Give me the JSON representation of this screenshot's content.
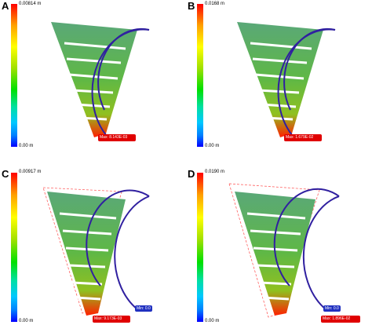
{
  "colormap": [
    "#0000ff",
    "#0080ff",
    "#00c8ff",
    "#00e0a0",
    "#00e000",
    "#a0e000",
    "#ffff00",
    "#ffa000",
    "#ff0000"
  ],
  "panels": [
    {
      "letter": "A",
      "scale_max": "0.00814 m",
      "scale_min": "0.00 m",
      "max_label": "Max: 8.143E-03",
      "min_label": "",
      "deformed_outline": false
    },
    {
      "letter": "B",
      "scale_max": "0.0168 m",
      "scale_min": "0.00 m",
      "max_label": "Max: 1.679E-02",
      "min_label": "",
      "deformed_outline": false
    },
    {
      "letter": "C",
      "scale_max": "0.00917 m",
      "scale_min": "0.00 m",
      "max_label": "Max: 9.173E-03",
      "min_label": "Min: 0.0",
      "deformed_outline": true
    },
    {
      "letter": "D",
      "scale_max": "0.0190 m",
      "scale_min": "0.00 m",
      "max_label": "Max: 1.896E-02",
      "min_label": "Min: 0.0",
      "deformed_outline": true
    }
  ]
}
